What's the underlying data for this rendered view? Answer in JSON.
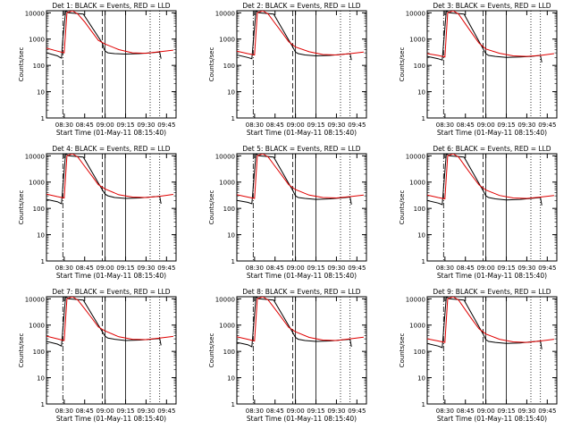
{
  "figure": {
    "background": "#ffffff",
    "axis_color": "#000000"
  },
  "panel_common": {
    "ylabel": "Counts/sec",
    "xlabel": "Start Time (01-May-11 08:15:40)",
    "title_suffix": "BLACK = Events, RED = LLD",
    "x_ticks": [
      "08:30",
      "08:45",
      "09:00",
      "09:15",
      "09:30",
      "09:45"
    ],
    "y_ticks": [
      "1",
      "10",
      "100",
      "1000",
      "10000"
    ]
  },
  "chart_data": [
    {
      "type": "line",
      "title": "Det 1: BLACK = Events, RED = LLD",
      "xlabel": "Start Time (01-May-11 08:15:40)",
      "ylabel": "Counts/sec",
      "x_ticks": [
        "08:30",
        "08:45",
        "09:00",
        "09:15",
        "09:30",
        "09:45"
      ],
      "yscale": "log",
      "ylim": [
        1,
        12000
      ],
      "series": [
        {
          "name": "Events",
          "color": "#000000",
          "x": [
            "08:17",
            "08:25",
            "08:27",
            "08:28",
            "08:29",
            "08:31",
            "08:31",
            "08:33",
            "08:44",
            "08:58",
            "08:59",
            "09:00",
            "09:02",
            "09:07",
            "09:15",
            "09:25",
            "09:33",
            "09:40",
            "09:41"
          ],
          "y": [
            300,
            230,
            200,
            190,
            1000,
            11000,
            12000,
            10000,
            9000,
            700,
            450,
            350,
            300,
            280,
            270,
            280,
            300,
            320,
            180
          ]
        },
        {
          "name": "LLD",
          "color": "#e00000",
          "x": [
            "08:17",
            "08:25",
            "08:30",
            "08:32",
            "08:36",
            "08:40",
            "08:45",
            "08:50",
            "08:55",
            "09:00",
            "09:10",
            "09:20",
            "09:30",
            "09:40",
            "09:50"
          ],
          "y": [
            450,
            350,
            300,
            10000,
            12000,
            9000,
            4500,
            2000,
            900,
            650,
            400,
            300,
            290,
            330,
            380
          ]
        }
      ],
      "markers_x": [
        "08:29",
        "08:58",
        "09:00",
        "09:15",
        "09:33",
        "09:40"
      ]
    },
    {
      "type": "line",
      "title": "Det 2: BLACK = Events, RED = LLD",
      "xlabel": "Start Time (01-May-11 08:15:40)",
      "ylabel": "Counts/sec",
      "x_ticks": [
        "08:30",
        "08:45",
        "09:00",
        "09:15",
        "09:30",
        "09:45"
      ],
      "yscale": "log",
      "ylim": [
        1,
        12000
      ],
      "series": [
        {
          "name": "Events",
          "color": "#000000",
          "x": [
            "08:17",
            "08:25",
            "08:28",
            "08:31",
            "08:33",
            "08:44",
            "08:58",
            "09:00",
            "09:02",
            "09:07",
            "09:15",
            "09:25",
            "09:33",
            "09:40",
            "09:41"
          ],
          "y": [
            250,
            200,
            180,
            12000,
            10000,
            9000,
            500,
            320,
            280,
            250,
            230,
            240,
            260,
            280,
            160
          ]
        },
        {
          "name": "LLD",
          "color": "#e00000",
          "x": [
            "08:17",
            "08:25",
            "08:30",
            "08:32",
            "08:36",
            "08:40",
            "08:45",
            "08:50",
            "08:55",
            "09:00",
            "09:10",
            "09:20",
            "09:30",
            "09:40",
            "09:50"
          ],
          "y": [
            350,
            280,
            250,
            10000,
            12000,
            9000,
            4000,
            1800,
            800,
            500,
            330,
            260,
            250,
            280,
            320
          ]
        }
      ],
      "markers_x": [
        "08:29",
        "08:58",
        "09:00",
        "09:15",
        "09:33",
        "09:40"
      ]
    },
    {
      "type": "line",
      "title": "Det 3: BLACK = Events, RED = LLD",
      "xlabel": "Start Time (01-May-11 08:15:40)",
      "ylabel": "Counts/sec",
      "x_ticks": [
        "08:30",
        "08:45",
        "09:00",
        "09:15",
        "09:30",
        "09:45"
      ],
      "yscale": "log",
      "ylim": [
        1,
        12000
      ],
      "series": [
        {
          "name": "Events",
          "color": "#000000",
          "x": [
            "08:17",
            "08:25",
            "08:28",
            "08:31",
            "08:33",
            "08:44",
            "08:58",
            "09:00",
            "09:02",
            "09:07",
            "09:15",
            "09:25",
            "09:33",
            "09:40",
            "09:41"
          ],
          "y": [
            220,
            180,
            160,
            12000,
            10000,
            9000,
            420,
            280,
            240,
            220,
            200,
            210,
            220,
            240,
            130
          ]
        },
        {
          "name": "LLD",
          "color": "#e00000",
          "x": [
            "08:17",
            "08:25",
            "08:30",
            "08:32",
            "08:36",
            "08:40",
            "08:45",
            "08:50",
            "08:55",
            "09:00",
            "09:10",
            "09:20",
            "09:30",
            "09:40",
            "09:50"
          ],
          "y": [
            280,
            240,
            210,
            10000,
            12000,
            9000,
            3800,
            1600,
            700,
            420,
            290,
            230,
            220,
            240,
            280
          ]
        }
      ],
      "markers_x": [
        "08:29",
        "08:58",
        "09:00",
        "09:15",
        "09:33",
        "09:40"
      ]
    },
    {
      "type": "line",
      "title": "Det 4: BLACK = Events, RED = LLD",
      "xlabel": "Start Time (01-May-11 08:15:40)",
      "ylabel": "Counts/sec",
      "x_ticks": [
        "08:30",
        "08:45",
        "09:00",
        "09:15",
        "09:30",
        "09:45"
      ],
      "yscale": "log",
      "ylim": [
        1,
        12000
      ],
      "series": [
        {
          "name": "Events",
          "color": "#000000",
          "x": [
            "08:17",
            "08:25",
            "08:28",
            "08:31",
            "08:33",
            "08:44",
            "08:58",
            "09:00",
            "09:02",
            "09:07",
            "09:15",
            "09:25",
            "09:33",
            "09:40",
            "09:41"
          ],
          "y": [
            220,
            180,
            150,
            12000,
            10000,
            9000,
            500,
            350,
            300,
            260,
            240,
            250,
            270,
            290,
            150
          ]
        },
        {
          "name": "LLD",
          "color": "#e00000",
          "x": [
            "08:17",
            "08:25",
            "08:30",
            "08:32",
            "08:36",
            "08:40",
            "08:45",
            "08:50",
            "08:55",
            "09:00",
            "09:10",
            "09:20",
            "09:30",
            "09:40",
            "09:50"
          ],
          "y": [
            350,
            280,
            250,
            10000,
            12000,
            9000,
            4000,
            1800,
            800,
            550,
            330,
            270,
            260,
            290,
            340
          ]
        }
      ],
      "markers_x": [
        "08:29",
        "08:58",
        "09:00",
        "09:15",
        "09:33",
        "09:40"
      ]
    },
    {
      "type": "line",
      "title": "Det 5: BLACK = Events, RED = LLD",
      "xlabel": "Start Time (01-May-11 08:15:40)",
      "ylabel": "Counts/sec",
      "x_ticks": [
        "08:30",
        "08:45",
        "09:00",
        "09:15",
        "09:30",
        "09:45"
      ],
      "yscale": "log",
      "ylim": [
        1,
        12000
      ],
      "series": [
        {
          "name": "Events",
          "color": "#000000",
          "x": [
            "08:17",
            "08:25",
            "08:28",
            "08:31",
            "08:33",
            "08:44",
            "08:58",
            "09:00",
            "09:02",
            "09:07",
            "09:15",
            "09:25",
            "09:33",
            "09:40",
            "09:41"
          ],
          "y": [
            200,
            170,
            150,
            12000,
            10000,
            9000,
            480,
            300,
            260,
            240,
            220,
            230,
            250,
            270,
            140
          ]
        },
        {
          "name": "LLD",
          "color": "#e00000",
          "x": [
            "08:17",
            "08:25",
            "08:30",
            "08:32",
            "08:36",
            "08:40",
            "08:45",
            "08:50",
            "08:55",
            "09:00",
            "09:10",
            "09:20",
            "09:30",
            "09:40",
            "09:50"
          ],
          "y": [
            330,
            270,
            240,
            10000,
            12000,
            9000,
            4000,
            1800,
            800,
            520,
            320,
            260,
            250,
            280,
            320
          ]
        }
      ],
      "markers_x": [
        "08:29",
        "08:58",
        "09:00",
        "09:15",
        "09:33",
        "09:40"
      ]
    },
    {
      "type": "line",
      "title": "Det 6: BLACK = Events, RED = LLD",
      "xlabel": "Start Time (01-May-11 08:15:40)",
      "ylabel": "Counts/sec",
      "x_ticks": [
        "08:30",
        "08:45",
        "09:00",
        "09:15",
        "09:30",
        "09:45"
      ],
      "yscale": "log",
      "ylim": [
        1,
        12000
      ],
      "series": [
        {
          "name": "Events",
          "color": "#000000",
          "x": [
            "08:17",
            "08:25",
            "08:28",
            "08:31",
            "08:33",
            "08:44",
            "08:58",
            "09:00",
            "09:02",
            "09:07",
            "09:15",
            "09:25",
            "09:33",
            "09:40",
            "09:41"
          ],
          "y": [
            200,
            160,
            140,
            12000,
            10000,
            9000,
            470,
            300,
            260,
            230,
            210,
            220,
            240,
            260,
            130
          ]
        },
        {
          "name": "LLD",
          "color": "#e00000",
          "x": [
            "08:17",
            "08:25",
            "08:30",
            "08:32",
            "08:36",
            "08:40",
            "08:45",
            "08:50",
            "08:55",
            "09:00",
            "09:10",
            "09:20",
            "09:30",
            "09:40",
            "09:50"
          ],
          "y": [
            320,
            260,
            230,
            10000,
            12000,
            9000,
            3900,
            1700,
            780,
            500,
            310,
            250,
            240,
            270,
            310
          ]
        }
      ],
      "markers_x": [
        "08:29",
        "08:58",
        "09:00",
        "09:15",
        "09:33",
        "09:40"
      ]
    },
    {
      "type": "line",
      "title": "Det 7: BLACK = Events, RED = LLD",
      "xlabel": "Start Time (01-May-11 08:15:40)",
      "ylabel": "Counts/sec",
      "x_ticks": [
        "08:30",
        "08:45",
        "09:00",
        "09:15",
        "09:30",
        "09:45"
      ],
      "yscale": "log",
      "ylim": [
        1,
        12000
      ],
      "series": [
        {
          "name": "Events",
          "color": "#000000",
          "x": [
            "08:17",
            "08:25",
            "08:28",
            "08:31",
            "08:33",
            "08:44",
            "08:58",
            "09:00",
            "09:02",
            "09:07",
            "09:15",
            "09:25",
            "09:33",
            "09:40",
            "09:41"
          ],
          "y": [
            240,
            190,
            160,
            12000,
            10000,
            9000,
            550,
            380,
            320,
            290,
            260,
            270,
            290,
            310,
            170
          ]
        },
        {
          "name": "LLD",
          "color": "#e00000",
          "x": [
            "08:17",
            "08:25",
            "08:30",
            "08:32",
            "08:36",
            "08:40",
            "08:45",
            "08:50",
            "08:55",
            "09:00",
            "09:10",
            "09:20",
            "09:30",
            "09:40",
            "09:50"
          ],
          "y": [
            380,
            300,
            260,
            10000,
            12000,
            9000,
            4200,
            1900,
            850,
            600,
            360,
            290,
            280,
            320,
            370
          ]
        }
      ],
      "markers_x": [
        "08:29",
        "08:58",
        "09:00",
        "09:15",
        "09:33",
        "09:40"
      ]
    },
    {
      "type": "line",
      "title": "Det 8: BLACK = Events, RED = LLD",
      "xlabel": "Start Time (01-May-11 08:15:40)",
      "ylabel": "Counts/sec",
      "x_ticks": [
        "08:30",
        "08:45",
        "09:00",
        "09:15",
        "09:30",
        "09:45"
      ],
      "yscale": "log",
      "ylim": [
        1,
        12000
      ],
      "series": [
        {
          "name": "Events",
          "color": "#000000",
          "x": [
            "08:17",
            "08:25",
            "08:28",
            "08:31",
            "08:33",
            "08:44",
            "08:58",
            "09:00",
            "09:02",
            "09:07",
            "09:15",
            "09:25",
            "09:33",
            "09:40",
            "09:41"
          ],
          "y": [
            220,
            180,
            150,
            12000,
            10000,
            9000,
            520,
            340,
            290,
            260,
            240,
            250,
            270,
            290,
            150
          ]
        },
        {
          "name": "LLD",
          "color": "#e00000",
          "x": [
            "08:17",
            "08:25",
            "08:30",
            "08:32",
            "08:36",
            "08:40",
            "08:45",
            "08:50",
            "08:55",
            "09:00",
            "09:10",
            "09:20",
            "09:30",
            "09:40",
            "09:50"
          ],
          "y": [
            360,
            290,
            250,
            10000,
            12000,
            9000,
            4100,
            1850,
            820,
            560,
            340,
            270,
            260,
            300,
            350
          ]
        }
      ],
      "markers_x": [
        "08:29",
        "08:58",
        "09:00",
        "09:15",
        "09:33",
        "09:40"
      ]
    },
    {
      "type": "line",
      "title": "Det 9: BLACK = Events, RED = LLD",
      "xlabel": "Start Time (01-May-11 08:15:40)",
      "ylabel": "Counts/sec",
      "x_ticks": [
        "08:30",
        "08:45",
        "09:00",
        "09:15",
        "09:30",
        "09:45"
      ],
      "yscale": "log",
      "ylim": [
        1,
        12000
      ],
      "series": [
        {
          "name": "Events",
          "color": "#000000",
          "x": [
            "08:17",
            "08:25",
            "08:28",
            "08:31",
            "08:33",
            "08:44",
            "08:58",
            "09:00",
            "09:02",
            "09:07",
            "09:15",
            "09:25",
            "09:33",
            "09:40",
            "09:41"
          ],
          "y": [
            200,
            160,
            140,
            12000,
            10000,
            9000,
            450,
            280,
            240,
            220,
            200,
            210,
            230,
            250,
            120
          ]
        },
        {
          "name": "LLD",
          "color": "#e00000",
          "x": [
            "08:17",
            "08:25",
            "08:30",
            "08:32",
            "08:36",
            "08:40",
            "08:45",
            "08:50",
            "08:55",
            "09:00",
            "09:10",
            "09:20",
            "09:30",
            "09:40",
            "09:50"
          ],
          "y": [
            300,
            250,
            220,
            10000,
            12000,
            9000,
            3800,
            1600,
            720,
            460,
            290,
            230,
            220,
            250,
            290
          ]
        }
      ],
      "markers_x": [
        "08:29",
        "08:58",
        "09:00",
        "09:15",
        "09:33",
        "09:40"
      ]
    }
  ]
}
